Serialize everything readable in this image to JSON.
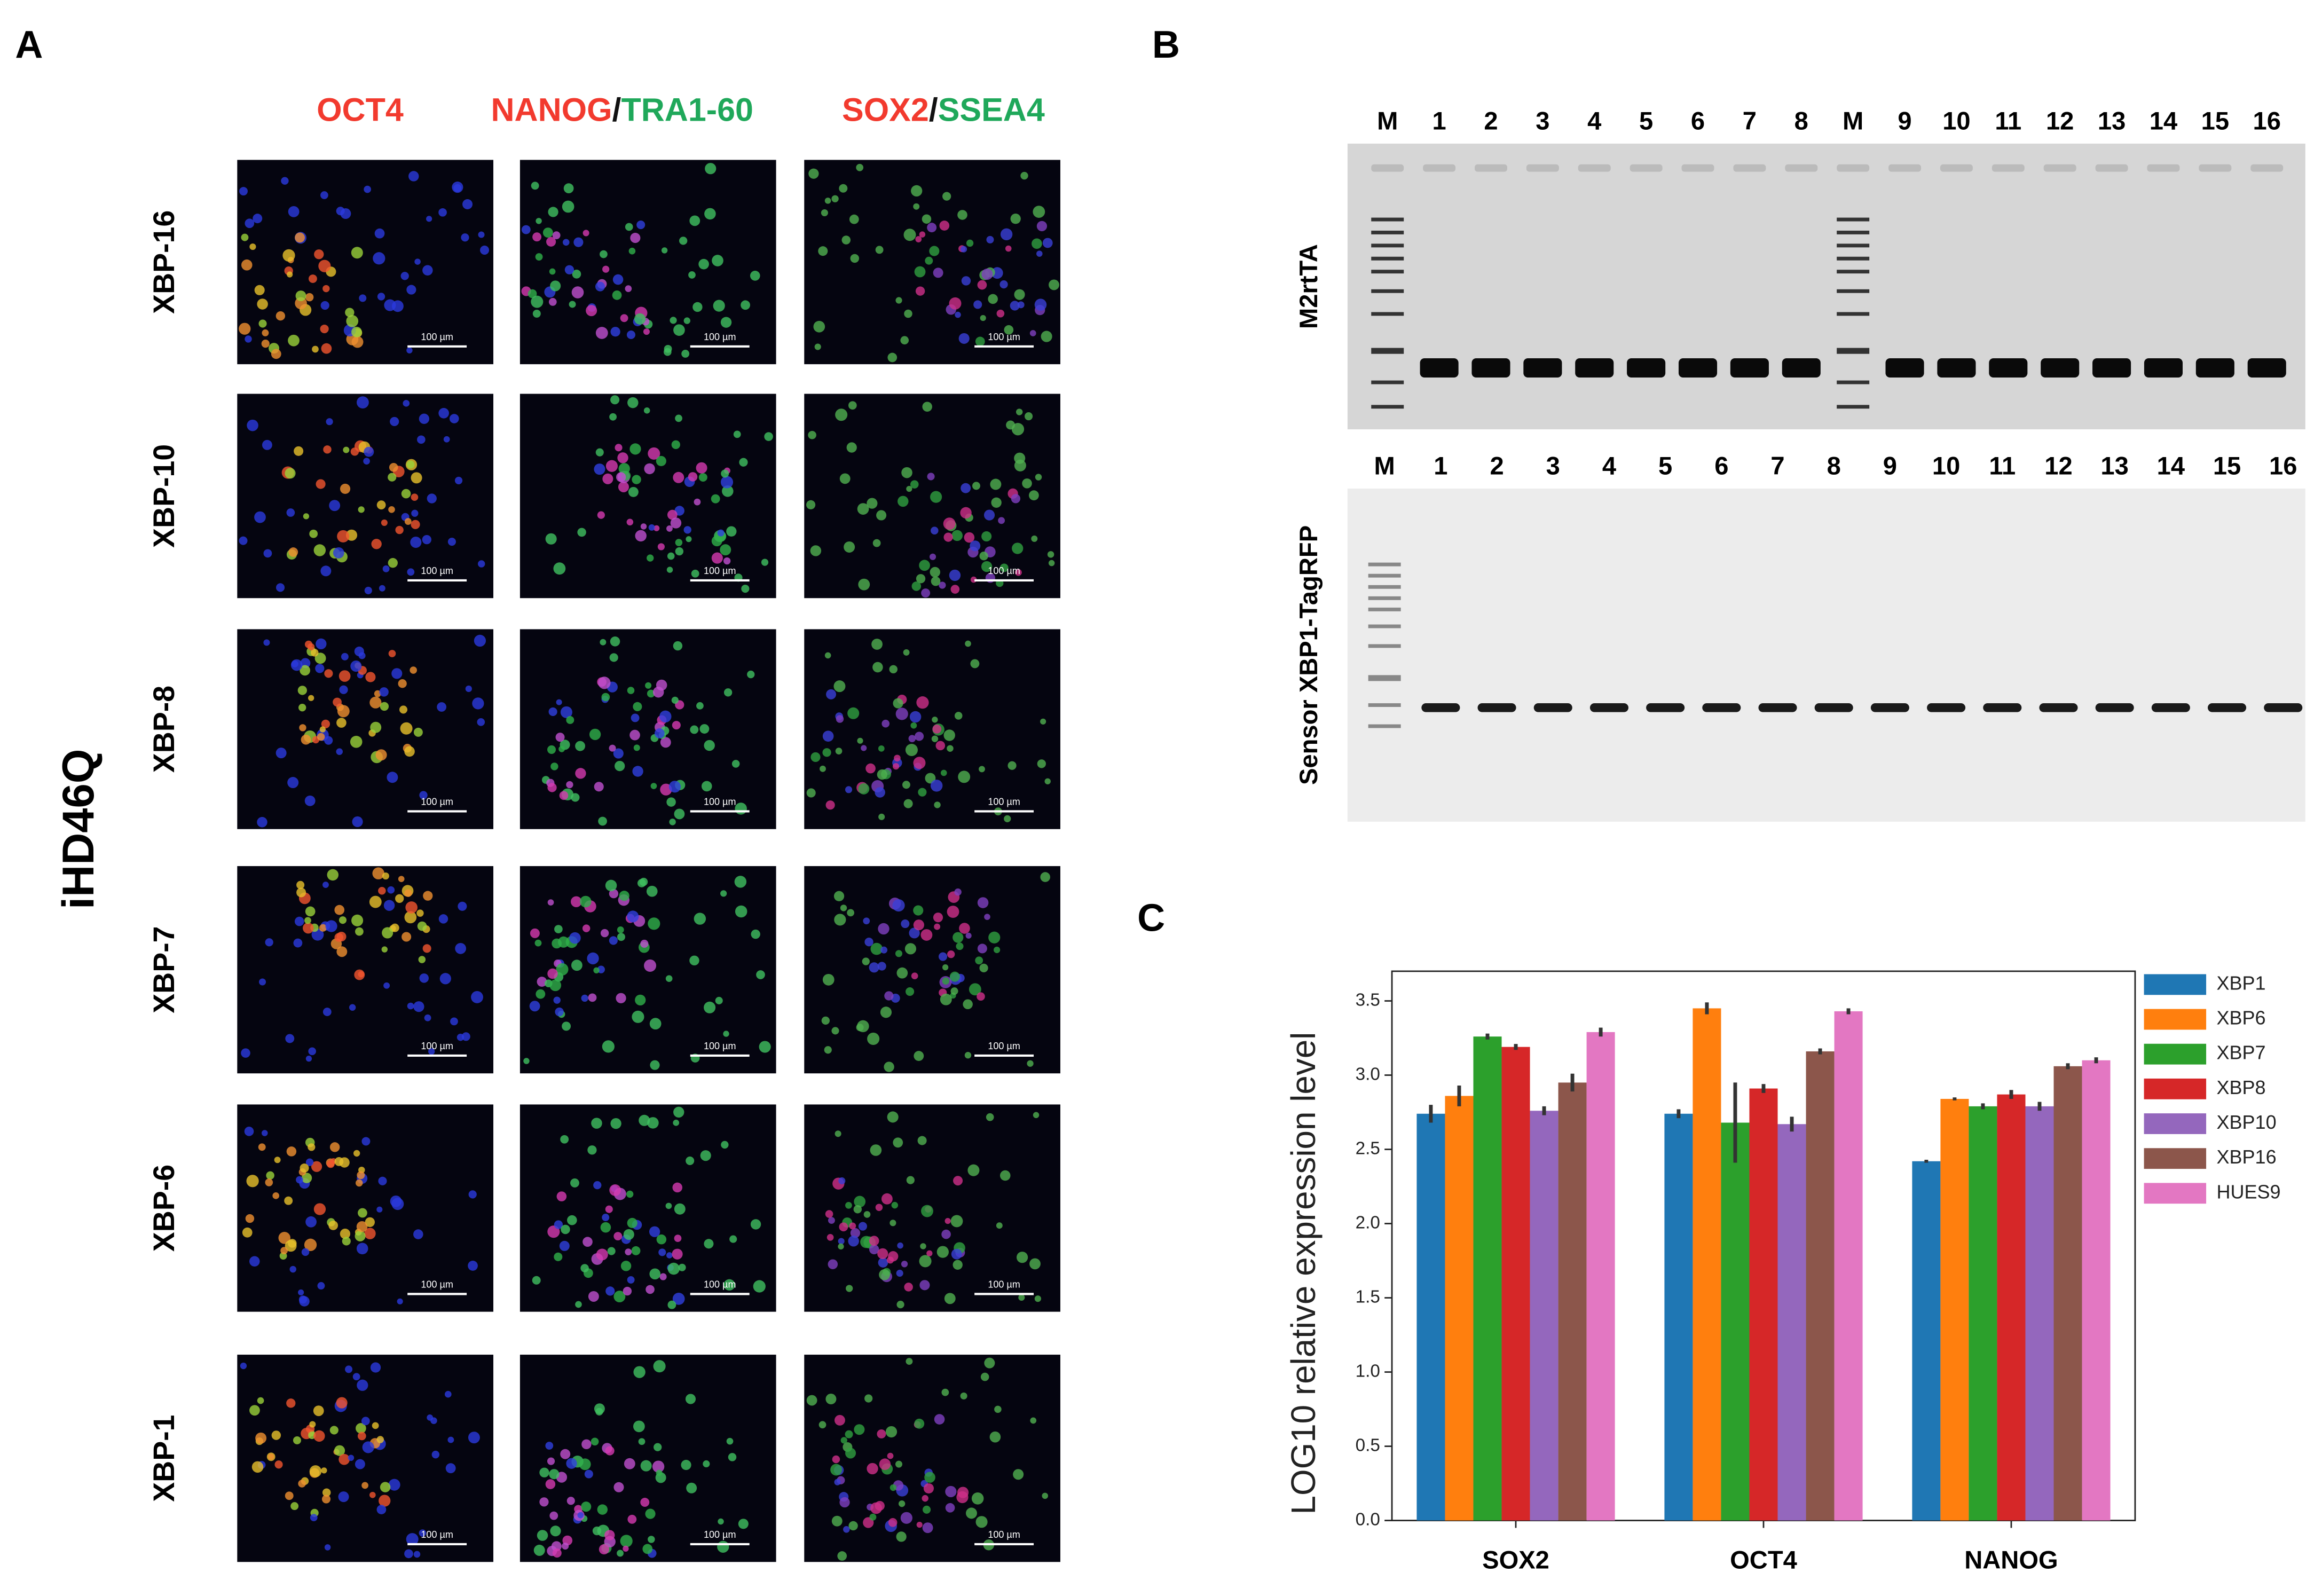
{
  "panel_a": {
    "label": "A",
    "column_headers": [
      {
        "parts": [
          "OCT4"
        ],
        "colors": [
          "#f23a2e"
        ]
      },
      {
        "parts": [
          "NANOG",
          "/",
          "TRA1-60"
        ],
        "colors": [
          "#f23a2e",
          "#111111",
          "#1fa85a"
        ]
      },
      {
        "parts": [
          "SOX2",
          "/",
          "SSEA4"
        ],
        "colors": [
          "#f23a2e",
          "#111111",
          "#1fa85a"
        ]
      }
    ],
    "row_labels": [
      "XBP-16",
      "XBP-10",
      "XBP-8",
      "XBP-7",
      "XBP-6",
      "XBP-1"
    ],
    "group_label": "iHD46Q",
    "scale_bar_label": "100 µm"
  },
  "panel_b": {
    "label": "B",
    "gels": [
      {
        "name": "M2rtTA",
        "lanes": [
          "M",
          "1",
          "2",
          "3",
          "4",
          "5",
          "6",
          "7",
          "8",
          "M",
          "9",
          "10",
          "11",
          "12",
          "13",
          "14",
          "15",
          "16"
        ]
      },
      {
        "name": "Sensor XBP1-TagRFP",
        "lanes": [
          "M",
          "1",
          "2",
          "3",
          "4",
          "5",
          "6",
          "7",
          "8",
          "9",
          "10",
          "11",
          "12",
          "13",
          "14",
          "15",
          "16"
        ]
      }
    ]
  },
  "chart_data": {
    "type": "bar",
    "panel_label": "C",
    "ylabel": "LOG10 relative expression level",
    "categories": [
      "SOX2",
      "OCT4",
      "NANOG"
    ],
    "series": [
      {
        "name": "XBP1",
        "color": "#1f77b4",
        "values": [
          2.74,
          2.74,
          2.42
        ],
        "errors": [
          0.06,
          0.03,
          0.01
        ]
      },
      {
        "name": "XBP6",
        "color": "#ff7f0e",
        "values": [
          2.86,
          3.45,
          2.84
        ],
        "errors": [
          0.07,
          0.04,
          0.01
        ]
      },
      {
        "name": "XBP7",
        "color": "#2ca02c",
        "values": [
          3.26,
          2.68,
          2.79
        ],
        "errors": [
          0.02,
          0.27,
          0.02
        ]
      },
      {
        "name": "XBP8",
        "color": "#d62728",
        "values": [
          3.19,
          2.91,
          2.87
        ],
        "errors": [
          0.02,
          0.03,
          0.03
        ]
      },
      {
        "name": "XBP10",
        "color": "#9467bd",
        "values": [
          2.76,
          2.67,
          2.79
        ],
        "errors": [
          0.03,
          0.05,
          0.03
        ]
      },
      {
        "name": "XBP16",
        "color": "#8c564b",
        "values": [
          2.95,
          3.16,
          3.06
        ],
        "errors": [
          0.06,
          0.02,
          0.02
        ]
      },
      {
        "name": "HUES9",
        "color": "#e377c2",
        "values": [
          3.29,
          3.43,
          3.1
        ],
        "errors": [
          0.03,
          0.02,
          0.02
        ]
      }
    ],
    "ylim": [
      0,
      3.7
    ],
    "yticks": [
      {
        "value": 0,
        "label": "0.0"
      },
      0.5,
      {
        "value": 1,
        "label": "1.0"
      },
      1.5,
      {
        "value": 2,
        "label": "2.0"
      },
      2.5,
      {
        "value": 3,
        "label": "3.0"
      },
      3.5
    ],
    "legend": "right-outside"
  }
}
